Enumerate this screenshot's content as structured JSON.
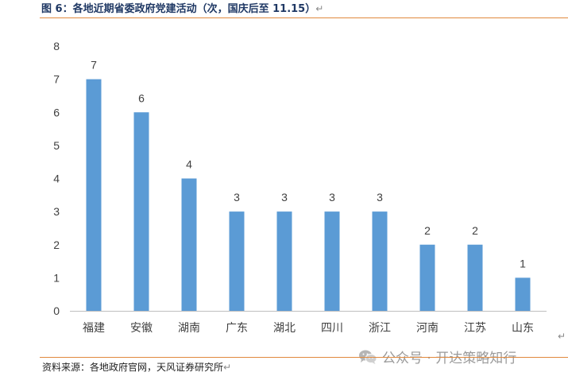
{
  "figure": {
    "title": "图 6：各地近期省委政府党建活动（次，国庆后至 11.15）",
    "return_glyph": "↵",
    "source": "资料来源：各地政府官网，天风证券研究所"
  },
  "watermark": {
    "text": "公众号 · 开达策略知行",
    "icon": "wechat-icon"
  },
  "colors": {
    "bar": "#5b9bd5",
    "axis": "#bfbfbf",
    "rule": "#e0893e",
    "title": "#1f3864"
  },
  "chart_data": {
    "type": "bar",
    "title": "",
    "xlabel": "",
    "ylabel": "",
    "ylim": [
      0,
      8
    ],
    "yticks": [
      0,
      1,
      2,
      3,
      4,
      5,
      6,
      7,
      8
    ],
    "categories": [
      "福建",
      "安徽",
      "湖南",
      "广东",
      "湖北",
      "四川",
      "浙江",
      "河南",
      "江苏",
      "山东"
    ],
    "values": [
      7,
      6,
      4,
      3,
      3,
      3,
      3,
      2,
      2,
      1
    ],
    "data_labels": true,
    "grid": false,
    "legend": "none"
  }
}
